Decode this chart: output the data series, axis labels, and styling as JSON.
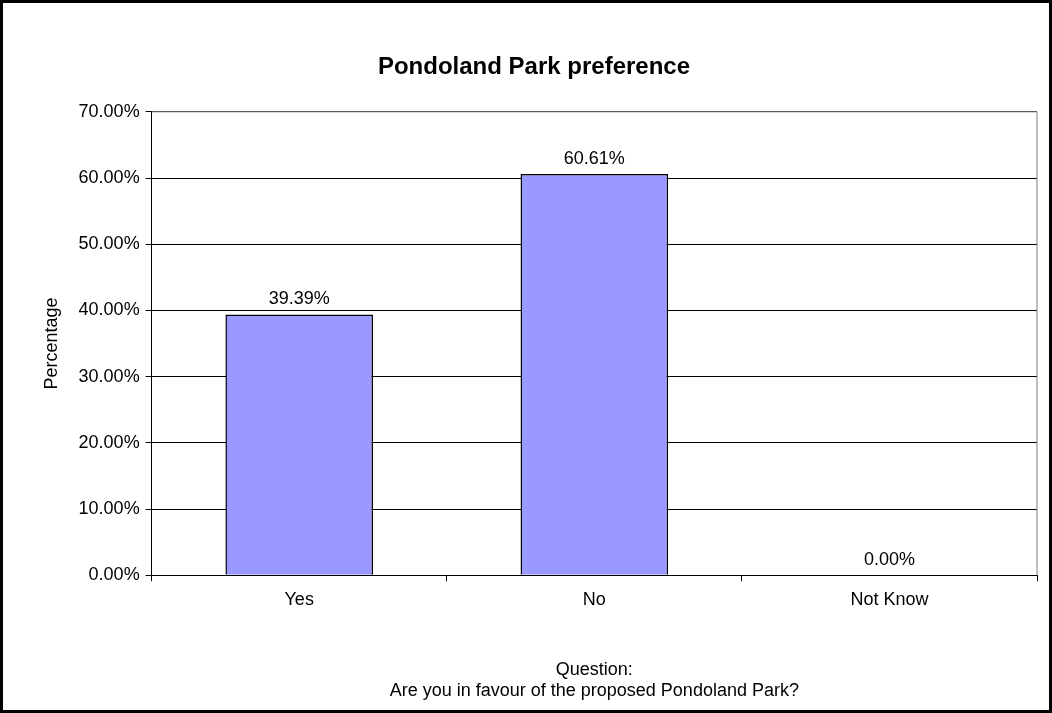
{
  "chart_data": {
    "type": "bar",
    "title": "Pondoland Park preference",
    "xlabel": "Question:\nAre you in favour of the proposed Pondoland Park?",
    "ylabel": "Percentage",
    "categories": [
      "Yes",
      "No",
      "Not Know"
    ],
    "values": [
      39.39,
      60.61,
      0
    ],
    "value_labels": [
      "39.39%",
      "60.61%",
      "0.00%"
    ],
    "color": "#9999ff",
    "ylim": [
      0,
      70
    ],
    "yticks": [
      {
        "value": 0,
        "label": "0.00%"
      },
      {
        "value": 10,
        "label": "10.00%"
      },
      {
        "value": 20,
        "label": "20.00%"
      },
      {
        "value": 30,
        "label": "30.00%"
      },
      {
        "value": 40,
        "label": "40.00%"
      },
      {
        "value": 50,
        "label": "50.00%"
      },
      {
        "value": 60,
        "label": "60.00%"
      },
      {
        "value": 70,
        "label": "70.00%"
      }
    ],
    "grid": "y",
    "legend": false
  }
}
